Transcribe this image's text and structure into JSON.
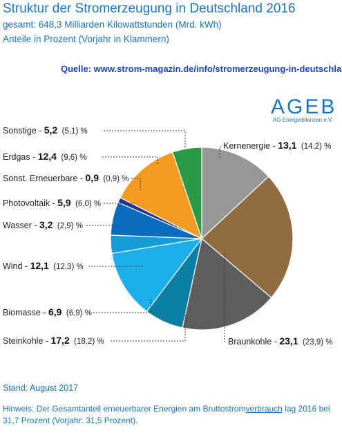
{
  "header": {
    "title": "Struktur der Stromerzeugung in Deutschland 2016",
    "subtitle1": "gesamt: 648,3 Milliarden Kilowattstunden (Mrd. kWh)",
    "subtitle2": "Anteile in Prozent (Vorjahr in Klammern)"
  },
  "source": "Quelle: www.strom-magazin.de/info/stromerzeugung-in-deutschland",
  "logo": {
    "name": "AGEB",
    "sub": "AG Energiebilanzen e.V."
  },
  "chart_data": {
    "type": "pie",
    "unit": "%",
    "slices": [
      {
        "label": "Kernenergie",
        "value": 13.1,
        "value_text": "13,1",
        "previous_text": "(14,2)",
        "color": "#979797"
      },
      {
        "label": "Braunkohle",
        "value": 23.1,
        "value_text": "23,1",
        "previous_text": "(23,9)",
        "color": "#8f6c42"
      },
      {
        "label": "Steinkohle",
        "value": 17.2,
        "value_text": "17,2",
        "previous_text": "(18,2)",
        "color": "#5e5e5e"
      },
      {
        "label": "Biomasse",
        "value": 6.9,
        "value_text": "6,9",
        "previous_text": "(6,9)",
        "color": "#0a7ea5"
      },
      {
        "label": "Wind",
        "value": 12.1,
        "value_text": "12,1",
        "previous_text": "(12,3)",
        "color": "#1bb0ec"
      },
      {
        "label": "Wasser",
        "value": 3.2,
        "value_text": "3,2",
        "previous_text": "(2,9)",
        "color": "#149bd8"
      },
      {
        "label": "Photovoltaik",
        "value": 5.9,
        "value_text": "5,9",
        "previous_text": "(6,0)",
        "color": "#0a6cbf"
      },
      {
        "label": "Sonst. Erneuerbare",
        "value": 0.9,
        "value_text": "0,9",
        "previous_text": "(0,9)",
        "color": "#24328a"
      },
      {
        "label": "Erdgas",
        "value": 12.4,
        "value_text": "12,4",
        "previous_text": "(9,6)",
        "color": "#f39a1f"
      },
      {
        "label": "Sonstige",
        "value": 5.2,
        "value_text": "5,2",
        "previous_text": "(5,1)",
        "color": "#2a9a45"
      }
    ]
  },
  "footer": {
    "stand": "Stand: August 2017",
    "note_part1": "Hinweis: Der Gesamtanteil erneuerbarer Energien am Bruttostrom",
    "note_underlined": "verbrauch",
    "note_part2": " lag 2016 bei 31,7 Prozent (Vorjahr: 31,5 Prozent)."
  }
}
